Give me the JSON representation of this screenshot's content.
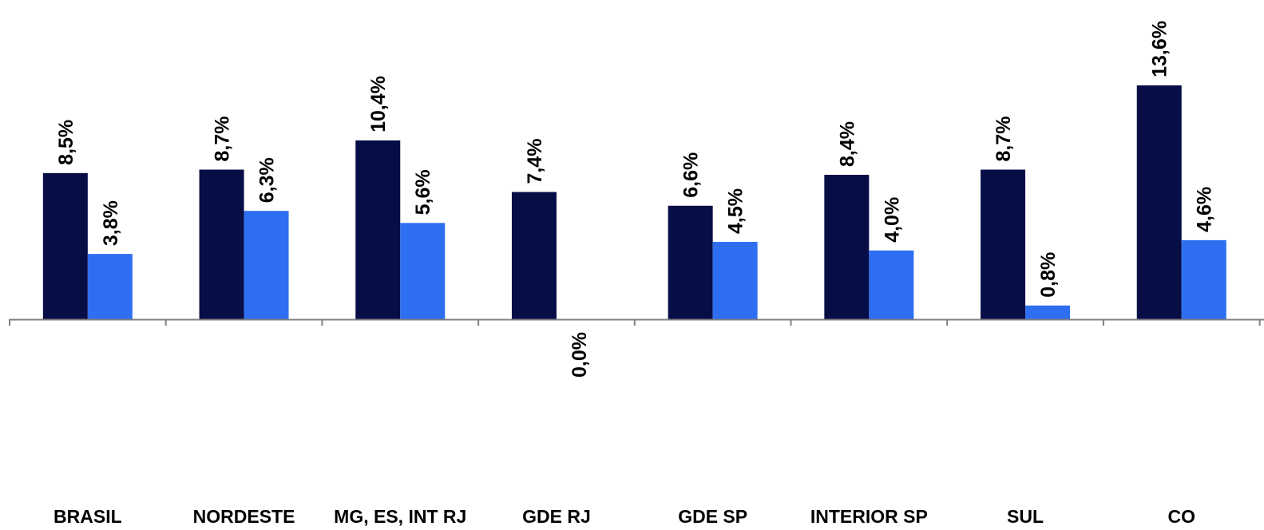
{
  "colors": {
    "series_1": "#070d45",
    "series_2": "#2e6ff2",
    "axis": "#808080"
  },
  "chart_data": {
    "type": "bar",
    "categories": [
      "BRASIL",
      "NORDESTE",
      "MG, ES, INT RJ",
      "GDE RJ",
      "GDE SP",
      "INTERIOR SP",
      "SUL",
      "CO"
    ],
    "series": [
      {
        "values": [
          8.5,
          8.7,
          10.4,
          7.4,
          6.6,
          8.4,
          8.7,
          13.6
        ],
        "labels": [
          "8,5%",
          "8,7%",
          "10,4%",
          "7,4%",
          "6,6%",
          "8,4%",
          "8,7%",
          "13,6%"
        ]
      },
      {
        "values": [
          3.8,
          6.3,
          5.6,
          0.0,
          4.5,
          4.0,
          0.8,
          4.6
        ],
        "labels": [
          "3,8%",
          "6,3%",
          "5,6%",
          "0,0%",
          "4,5%",
          "4,0%",
          "0,8%",
          "4,6%"
        ]
      }
    ],
    "grid": false,
    "legend": "none"
  }
}
